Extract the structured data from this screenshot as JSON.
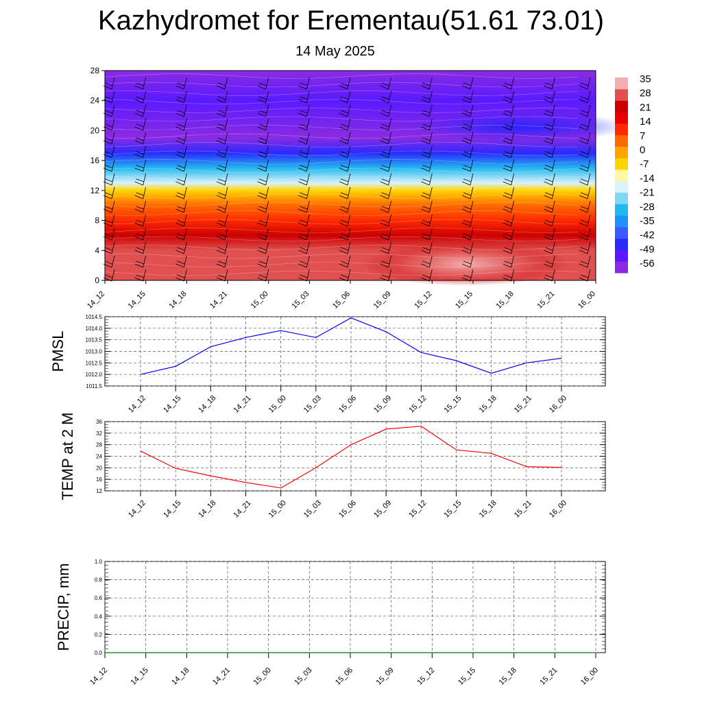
{
  "title": "Kazhydromet for Erementau(51.61 73.01)",
  "subtitle": "14 May 2025",
  "time_labels": [
    "14_12",
    "14_15",
    "14_18",
    "14_21",
    "15_00",
    "15_03",
    "15_06",
    "15_09",
    "15_12",
    "15_15",
    "15_18",
    "15_21",
    "16_00"
  ],
  "colors": {
    "pmsl_line": "#0000ff",
    "temp_line": "#ff0000",
    "precip_line": "#008000",
    "grid": "#000000",
    "colorbar": [
      "#8a2be2",
      "#5a1aff",
      "#2a2aff",
      "#3a5aff",
      "#1e90ff",
      "#22b8f0",
      "#7fd8f6",
      "#d9f2fb",
      "#fff8a0",
      "#ffd400",
      "#ffa500",
      "#ff6a00",
      "#ff2a00",
      "#e60000",
      "#cc0000",
      "#e05050",
      "#f4b0b0"
    ]
  },
  "chart_data": [
    {
      "type": "heatmap",
      "name": "vertical-section",
      "x": [
        "14_12",
        "14_15",
        "14_18",
        "14_21",
        "15_00",
        "15_03",
        "15_06",
        "15_09",
        "15_12",
        "15_15",
        "15_18",
        "15_21",
        "16_00"
      ],
      "y_ticks": [
        0,
        4,
        8,
        12,
        16,
        20,
        24,
        28
      ],
      "ylim": [
        0,
        28
      ],
      "colorbar_levels": [
        35,
        28,
        21,
        14,
        7,
        0,
        -7,
        -14,
        -21,
        -28,
        -35,
        -42,
        -49,
        -56
      ],
      "vertical_profile": [
        {
          "height": 0,
          "value": 28
        },
        {
          "height": 4,
          "value": 28
        },
        {
          "height": 6,
          "value": 21
        },
        {
          "height": 8,
          "value": 14
        },
        {
          "height": 10,
          "value": 7
        },
        {
          "height": 12,
          "value": -7
        },
        {
          "height": 13,
          "value": -14
        },
        {
          "height": 15,
          "value": -28
        },
        {
          "height": 17,
          "value": -42
        },
        {
          "height": 19,
          "value": -56
        },
        {
          "height": 24,
          "value": -49
        },
        {
          "height": 28,
          "value": -56
        }
      ],
      "note_fill": "warm surface maximum near 15_09-15_18"
    },
    {
      "type": "line",
      "name": "pmsl",
      "ylabel": "PMSL",
      "x": [
        "14_12",
        "14_15",
        "14_18",
        "14_21",
        "15_00",
        "15_03",
        "15_06",
        "15_09",
        "15_12",
        "15_15",
        "15_18",
        "15_21",
        "16_00"
      ],
      "y": [
        1012.0,
        1012.35,
        1013.2,
        1013.6,
        1013.9,
        1013.6,
        1014.45,
        1013.85,
        1012.95,
        1012.6,
        1012.05,
        1012.5,
        1012.7
      ],
      "ylim": [
        1011.5,
        1014.5
      ],
      "y_ticks": [
        "1014.5",
        "1014.0",
        "1013.5",
        "1013.0",
        "1012.5",
        "1012.0",
        "1011.5"
      ]
    },
    {
      "type": "line",
      "name": "temp",
      "ylabel": "TEMP at 2 M",
      "x": [
        "14_12",
        "14_15",
        "14_18",
        "14_21",
        "15_00",
        "15_03",
        "15_06",
        "15_09",
        "15_12",
        "15_15",
        "15_18",
        "15_21",
        "16_00"
      ],
      "y": [
        25.8,
        19.8,
        17.2,
        14.9,
        13.0,
        20.0,
        28.0,
        33.4,
        34.4,
        26.2,
        25.0,
        20.4,
        20.1
      ],
      "ylim": [
        12,
        36
      ],
      "y_ticks": [
        "36",
        "32",
        "28",
        "24",
        "20",
        "16",
        "12"
      ]
    },
    {
      "type": "line",
      "name": "precip",
      "ylabel": "PRECIP, mm",
      "x": [
        "14_12",
        "14_15",
        "14_18",
        "14_21",
        "15_00",
        "15_03",
        "15_06",
        "15_09",
        "15_12",
        "15_15",
        "15_18",
        "15_21",
        "16_00"
      ],
      "y": [
        0,
        0,
        0,
        0,
        0,
        0,
        0,
        0,
        0,
        0,
        0,
        0,
        0
      ],
      "ylim": [
        0.0,
        1.0
      ],
      "y_ticks": [
        "1.0",
        "0.8",
        "0.6",
        "0.4",
        "0.2",
        "0.0"
      ]
    }
  ]
}
